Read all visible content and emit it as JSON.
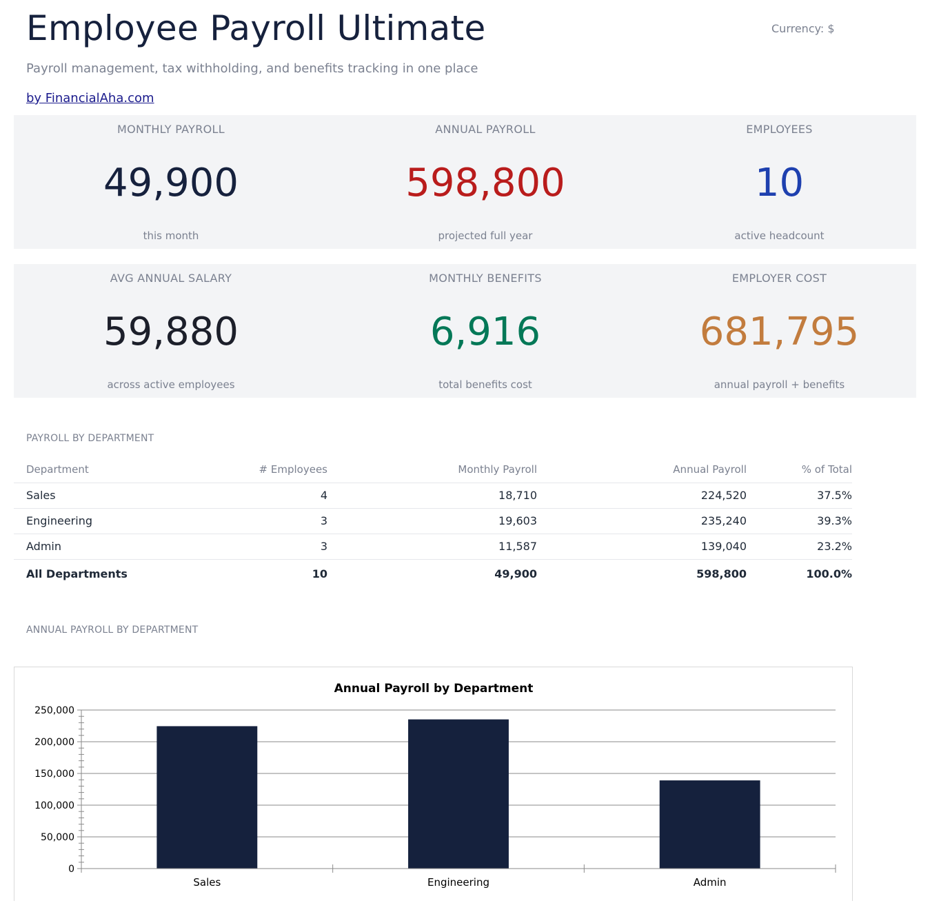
{
  "header": {
    "title": "Employee Payroll Ultimate",
    "currency": "Currency: $",
    "subtitle": "Payroll management, tax withholding, and benefits tracking in one place",
    "byline": "by FinancialAha.com"
  },
  "kpis": {
    "monthly_payroll": {
      "label": "MONTHLY PAYROLL",
      "value": "49,900",
      "sub": "this month",
      "color": "#16213d"
    },
    "annual_payroll": {
      "label": "ANNUAL PAYROLL",
      "value": "598,800",
      "sub": "projected full year",
      "color": "#b91c1c"
    },
    "employees": {
      "label": "EMPLOYEES",
      "value": "10",
      "sub": "active headcount",
      "color": "#1e40af"
    },
    "avg_salary": {
      "label": "AVG ANNUAL SALARY",
      "value": "59,880",
      "sub": "across active employees",
      "color": "#1c1f2a"
    },
    "monthly_benefits": {
      "label": "MONTHLY BENEFITS",
      "value": "6,916",
      "sub": "total benefits cost",
      "color": "#047857"
    },
    "employer_cost": {
      "label": "EMPLOYER COST",
      "value": "681,795",
      "sub": "annual payroll + benefits",
      "color": "#c27c3e"
    }
  },
  "dept_section": {
    "label": "PAYROLL BY DEPARTMENT",
    "headers": [
      "Department",
      "# Employees",
      "Monthly Payroll",
      "Annual Payroll",
      "% of Total"
    ],
    "rows": [
      [
        "Sales",
        "4",
        "18,710",
        "224,520",
        "37.5%"
      ],
      [
        "Engineering",
        "3",
        "19,603",
        "235,240",
        "39.3%"
      ],
      [
        "Admin",
        "3",
        "11,587",
        "139,040",
        "23.2%"
      ]
    ],
    "total": [
      "All Departments",
      "10",
      "49,900",
      "598,800",
      "100.0%"
    ]
  },
  "chart_section": {
    "label": "ANNUAL PAYROLL BY DEPARTMENT"
  },
  "chart_data": {
    "type": "bar",
    "title": "Annual Payroll by Department",
    "categories": [
      "Sales",
      "Engineering",
      "Admin"
    ],
    "values": [
      224520,
      235240,
      139040
    ],
    "ylim": [
      0,
      250000
    ],
    "yticks": [
      0,
      50000,
      100000,
      150000,
      200000,
      250000
    ],
    "ytick_labels": [
      "0",
      "50,000",
      "100,000",
      "150,000",
      "200,000",
      "250,000"
    ],
    "grid": true,
    "bar_color": "#15213d"
  }
}
